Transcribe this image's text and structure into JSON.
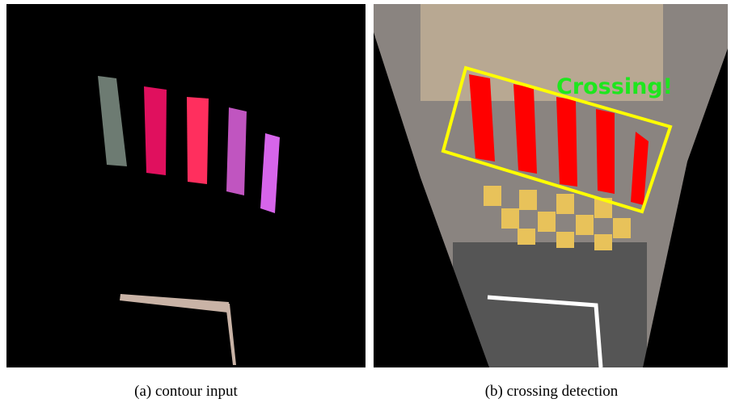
{
  "figure": {
    "panels": [
      {
        "caption": "(a) contour input"
      },
      {
        "caption": "(b) crossing detection",
        "overlay_text": "Crossing!"
      }
    ]
  }
}
